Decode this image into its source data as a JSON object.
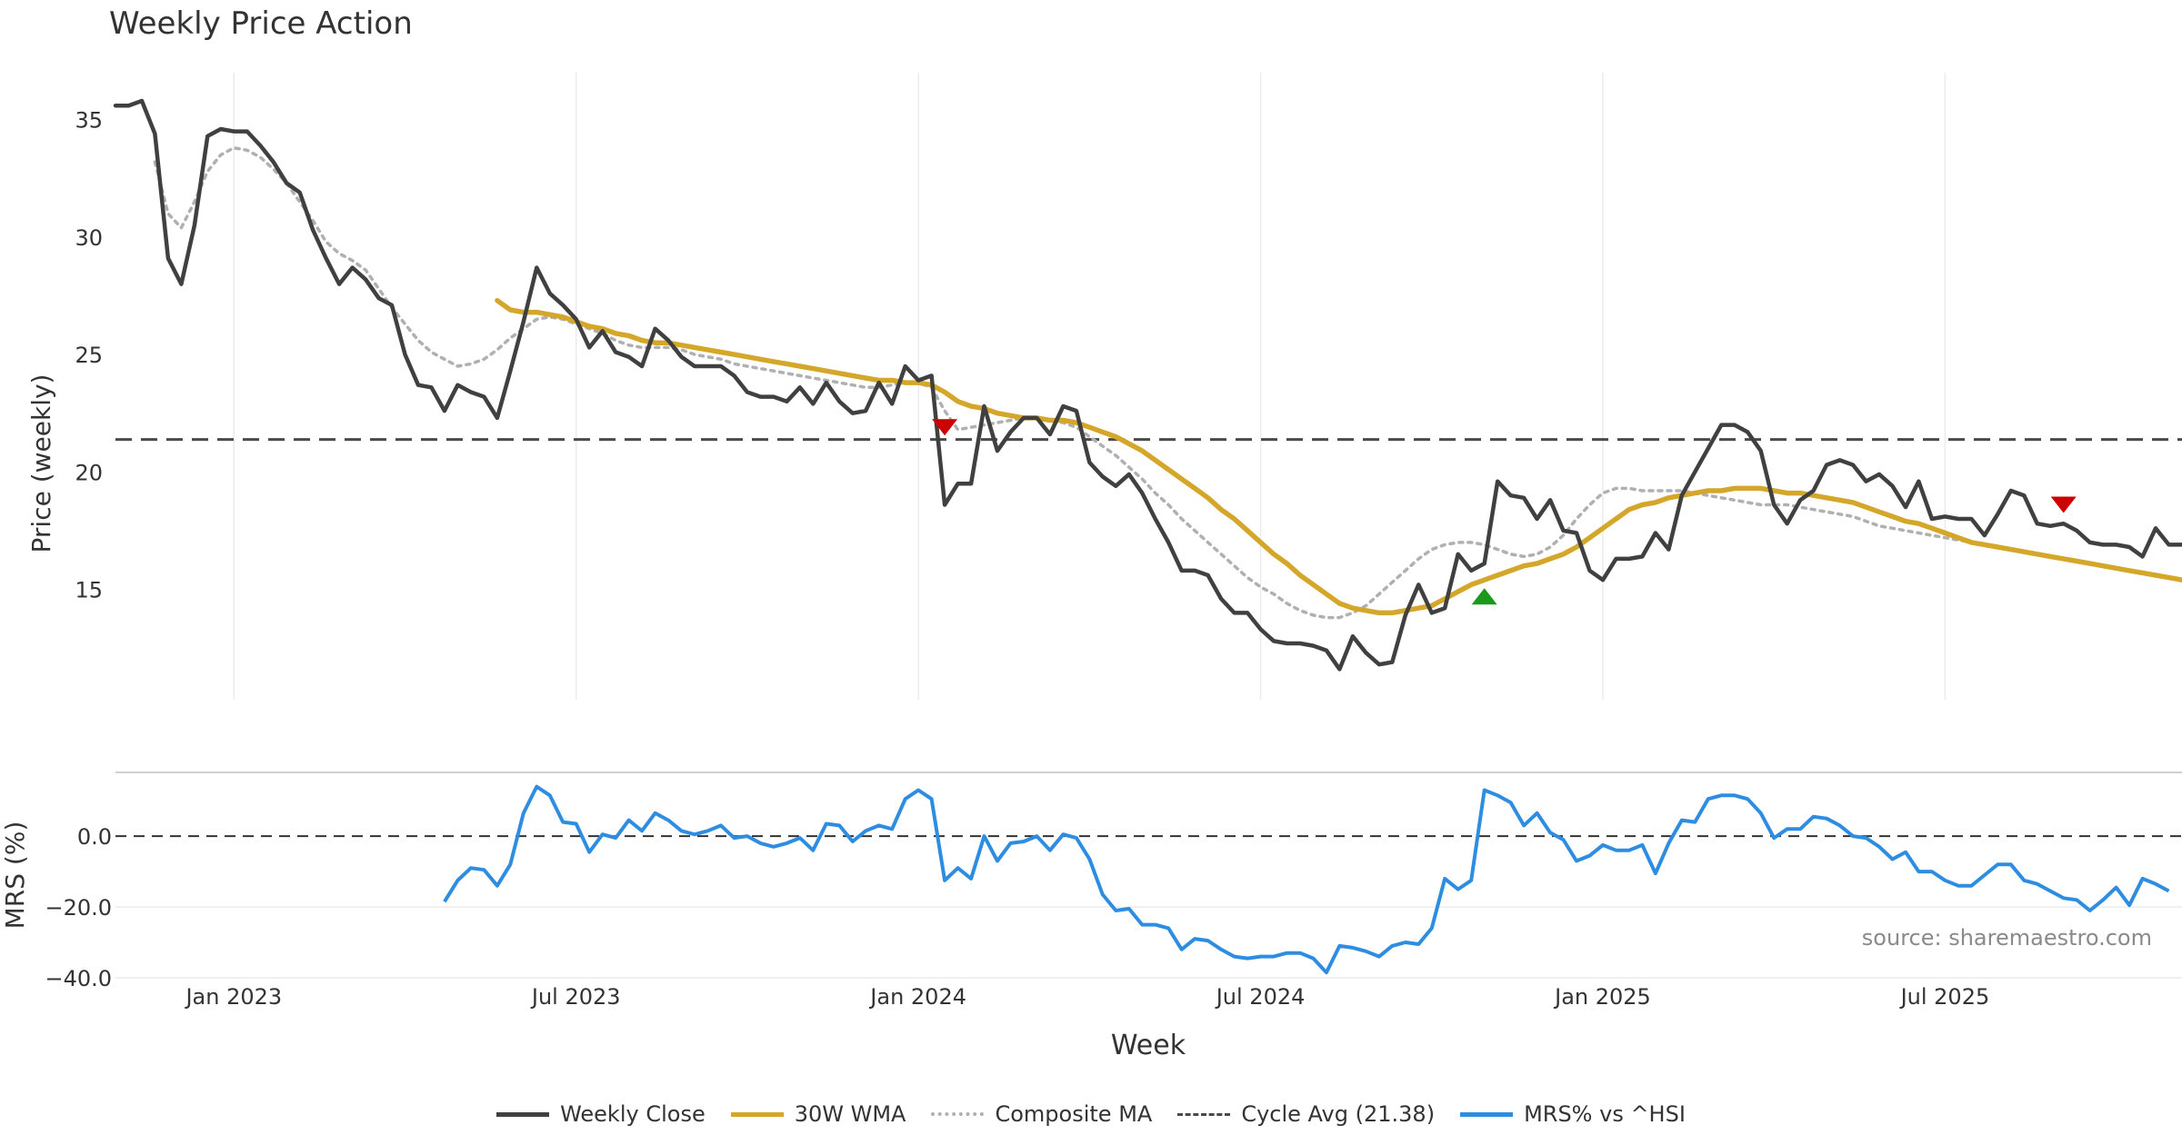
{
  "title": "Weekly Price Action",
  "source": "source: sharemaestro.com",
  "colors": {
    "close": "#404040",
    "wma": "#d4a62a",
    "composite": "#b0b0b0",
    "cycle": "#4a4a4a",
    "mrs": "#2e8de0",
    "sell": "#cc0000",
    "buy": "#1a9a1a"
  },
  "legend": [
    {
      "label": "Weekly Close",
      "style": "solid",
      "color": "#404040"
    },
    {
      "label": "30W WMA",
      "style": "solid",
      "color": "#d4a62a"
    },
    {
      "label": "Composite MA",
      "style": "dotted",
      "color": "#b0b0b0"
    },
    {
      "label": "Cycle Avg (21.38)",
      "style": "dashed",
      "color": "#4a4a4a"
    },
    {
      "label": "MRS% vs ^HSI",
      "style": "solid",
      "color": "#2e8de0"
    }
  ],
  "chart_data": [
    {
      "type": "line",
      "title": "Weekly Price Action",
      "ylabel": "Price (weekly)",
      "yticks": [
        15,
        20,
        25,
        30,
        35
      ],
      "ylim": [
        10.3,
        37.0
      ],
      "xlabels": [
        "Jan 2023",
        "Jul 2023",
        "Jan 2024",
        "Jul 2024",
        "Jan 2025",
        "Jul 2025"
      ],
      "cycle_avg": 21.38,
      "grid": "vertical",
      "series": [
        {
          "name": "Weekly Close",
          "key": "close",
          "values": [
            35.6,
            35.6,
            35.8,
            34.4,
            29.1,
            28.0,
            30.5,
            34.3,
            34.6,
            34.5,
            34.5,
            33.9,
            33.2,
            32.3,
            31.9,
            30.3,
            29.1,
            28.0,
            28.7,
            28.2,
            27.4,
            27.1,
            25.0,
            23.7,
            23.6,
            22.6,
            23.7,
            23.4,
            23.2,
            22.3,
            24.3,
            26.4,
            28.7,
            27.6,
            27.1,
            26.5,
            25.3,
            26.0,
            25.1,
            24.9,
            24.5,
            26.1,
            25.6,
            24.9,
            24.5,
            24.5,
            24.5,
            24.1,
            23.4,
            23.2,
            23.2,
            23.0,
            23.6,
            22.9,
            23.8,
            23.0,
            22.5,
            22.6,
            23.8,
            22.9,
            24.5,
            23.9,
            24.1,
            18.6,
            19.5,
            19.5,
            22.8,
            20.9,
            21.7,
            22.3,
            22.3,
            21.6,
            22.8,
            22.6,
            20.4,
            19.8,
            19.4,
            19.9,
            19.1,
            18.0,
            17.0,
            15.8,
            15.8,
            15.6,
            14.6,
            14.0,
            14.0,
            13.3,
            12.8,
            12.7,
            12.7,
            12.6,
            12.4,
            11.6,
            13.0,
            12.3,
            11.8,
            11.9,
            13.9,
            15.2,
            14.0,
            14.2,
            16.5,
            15.8,
            16.1,
            19.6,
            19.0,
            18.9,
            18.0,
            18.8,
            17.5,
            17.4,
            15.8,
            15.4,
            16.3,
            16.3,
            16.4,
            17.4,
            16.7,
            19.0,
            20.0,
            21.0,
            22.0,
            22.0,
            21.7,
            20.9,
            18.6,
            17.8,
            18.8,
            19.2,
            20.3,
            20.5,
            20.3,
            19.6,
            19.9,
            19.4,
            18.5,
            19.6,
            18.0,
            18.1,
            18.0,
            18.0,
            17.3,
            18.2,
            19.2,
            19.0,
            17.8,
            17.7,
            17.8,
            17.5,
            17.0,
            16.9,
            16.9,
            16.8,
            16.4,
            17.6,
            16.9,
            16.9
          ]
        },
        {
          "name": "30W WMA",
          "key": "wma",
          "values": [
            null,
            null,
            null,
            null,
            null,
            null,
            null,
            null,
            null,
            null,
            null,
            null,
            null,
            null,
            null,
            null,
            null,
            null,
            null,
            null,
            null,
            null,
            null,
            null,
            null,
            null,
            null,
            null,
            null,
            27.3,
            26.9,
            26.8,
            26.8,
            26.7,
            26.6,
            26.4,
            26.2,
            26.1,
            25.9,
            25.8,
            25.6,
            25.5,
            25.5,
            25.4,
            25.3,
            25.2,
            25.1,
            25.0,
            24.9,
            24.8,
            24.7,
            24.6,
            24.5,
            24.4,
            24.3,
            24.2,
            24.1,
            24.0,
            23.9,
            23.9,
            23.8,
            23.8,
            23.7,
            23.4,
            23.0,
            22.8,
            22.7,
            22.5,
            22.4,
            22.3,
            22.3,
            22.2,
            22.2,
            22.1,
            21.9,
            21.7,
            21.5,
            21.2,
            20.9,
            20.5,
            20.1,
            19.7,
            19.3,
            18.9,
            18.4,
            18.0,
            17.5,
            17.0,
            16.5,
            16.1,
            15.6,
            15.2,
            14.8,
            14.4,
            14.2,
            14.1,
            14.0,
            14.0,
            14.1,
            14.2,
            14.3,
            14.6,
            14.9,
            15.2,
            15.4,
            15.6,
            15.8,
            16.0,
            16.1,
            16.3,
            16.5,
            16.8,
            17.2,
            17.6,
            18.0,
            18.4,
            18.6,
            18.7,
            18.9,
            19.0,
            19.1,
            19.2,
            19.2,
            19.3,
            19.3,
            19.3,
            19.2,
            19.1,
            19.1,
            19.0,
            18.9,
            18.8,
            18.7,
            18.5,
            18.3,
            18.1,
            17.9,
            17.8,
            17.6,
            17.4,
            17.2,
            17.0,
            16.9,
            16.8,
            16.7,
            16.6,
            16.5,
            16.4,
            16.3,
            16.2,
            16.1,
            16.0,
            15.9,
            15.8,
            15.7,
            15.6,
            15.5,
            15.4
          ]
        },
        {
          "name": "Composite MA",
          "key": "composite",
          "values": [
            null,
            null,
            null,
            33.2,
            31.0,
            30.4,
            31.5,
            32.8,
            33.5,
            33.8,
            33.7,
            33.4,
            32.9,
            32.3,
            31.5,
            30.7,
            29.8,
            29.3,
            29.0,
            28.6,
            27.8,
            27.0,
            26.3,
            25.6,
            25.1,
            24.8,
            24.5,
            24.6,
            24.8,
            25.2,
            25.7,
            26.1,
            26.5,
            26.6,
            26.5,
            26.3,
            26.1,
            25.9,
            25.6,
            25.4,
            25.3,
            25.3,
            25.3,
            25.2,
            25.0,
            24.9,
            24.8,
            24.6,
            24.5,
            24.4,
            24.3,
            24.2,
            24.1,
            24.0,
            23.9,
            23.8,
            23.7,
            23.6,
            23.6,
            23.7,
            23.8,
            23.8,
            23.6,
            22.6,
            21.8,
            21.9,
            22.0,
            22.1,
            22.2,
            22.3,
            22.3,
            22.2,
            22.1,
            21.9,
            21.5,
            21.1,
            20.7,
            20.2,
            19.7,
            19.1,
            18.6,
            18.0,
            17.5,
            17.0,
            16.5,
            16.0,
            15.5,
            15.1,
            14.8,
            14.4,
            14.1,
            13.9,
            13.8,
            13.8,
            14.0,
            14.3,
            14.8,
            15.3,
            15.8,
            16.3,
            16.7,
            16.9,
            17.0,
            17.0,
            16.9,
            16.7,
            16.5,
            16.4,
            16.5,
            16.8,
            17.3,
            18.0,
            18.6,
            19.1,
            19.3,
            19.3,
            19.2,
            19.2,
            19.2,
            19.2,
            19.1,
            19.0,
            18.9,
            18.8,
            18.7,
            18.6,
            18.6,
            18.6,
            18.5,
            18.4,
            18.3,
            18.2,
            18.1,
            17.9,
            17.7,
            17.6,
            17.5,
            17.4,
            17.3,
            17.2,
            17.1,
            17.0,
            16.9,
            16.8,
            16.7,
            16.6,
            16.5,
            16.4,
            16.3,
            16.2,
            16.1,
            16.0,
            15.9,
            15.8,
            15.7,
            15.6,
            15.5
          ]
        }
      ],
      "signals": [
        {
          "type": "sell",
          "week": 63,
          "value": 21.9
        },
        {
          "type": "buy",
          "week": 104,
          "value": 14.7
        },
        {
          "type": "sell",
          "week": 148,
          "value": 18.6
        }
      ]
    },
    {
      "type": "line",
      "ylabel": "MRS (%)",
      "yticks": [
        -40.0,
        -20.0,
        0.0
      ],
      "ylim": [
        -40.0,
        18.0
      ],
      "zero_line": 0.0,
      "series": [
        {
          "name": "MRS% vs ^HSI",
          "key": "mrs",
          "values": [
            null,
            null,
            null,
            null,
            null,
            null,
            null,
            null,
            null,
            null,
            null,
            null,
            null,
            null,
            null,
            null,
            null,
            null,
            null,
            null,
            null,
            null,
            null,
            null,
            null,
            -18.5,
            -12.5,
            -9.0,
            -9.5,
            -14.0,
            -8.0,
            6.5,
            14.0,
            11.5,
            4.0,
            3.5,
            -4.5,
            0.5,
            -0.5,
            4.5,
            1.5,
            6.5,
            4.5,
            1.5,
            0.5,
            1.5,
            3.0,
            -0.5,
            0.0,
            -2.0,
            -3.0,
            -2.0,
            -0.5,
            -4.0,
            3.5,
            3.0,
            -1.5,
            1.5,
            3.0,
            2.0,
            10.5,
            13.0,
            10.5,
            -12.5,
            -9.0,
            -12.0,
            0.0,
            -7.0,
            -2.0,
            -1.5,
            0.0,
            -4.0,
            0.5,
            -0.5,
            -6.5,
            -16.5,
            -21.0,
            -20.5,
            -25.0,
            -25.0,
            -26.0,
            -32.0,
            -29.0,
            -29.5,
            -32.0,
            -34.0,
            -34.5,
            -34.0,
            -34.0,
            -33.0,
            -33.0,
            -34.5,
            -38.5,
            -31.0,
            -31.5,
            -32.5,
            -34.0,
            -31.0,
            -30.0,
            -30.5,
            -26.0,
            -12.0,
            -15.0,
            -12.5,
            13.0,
            11.5,
            9.5,
            3.0,
            6.5,
            1.0,
            -1.0,
            -7.0,
            -5.5,
            -2.5,
            -4.0,
            -4.0,
            -2.5,
            -10.5,
            -2.0,
            4.5,
            4.0,
            10.5,
            11.5,
            11.5,
            10.5,
            6.5,
            -0.5,
            2.0,
            2.0,
            5.5,
            5.0,
            3.0,
            0.0,
            -0.5,
            -3.0,
            -6.5,
            -4.5,
            -10.0,
            -10.0,
            -12.5,
            -14.0,
            -14.0,
            -11.0,
            -8.0,
            -8.0,
            -12.5,
            -13.5,
            -15.5,
            -17.5,
            -18.0,
            -21.0,
            -18.0,
            -14.5,
            -19.5,
            -12.0,
            -13.5,
            -15.5
          ]
        }
      ]
    }
  ],
  "xlabel": "Week"
}
